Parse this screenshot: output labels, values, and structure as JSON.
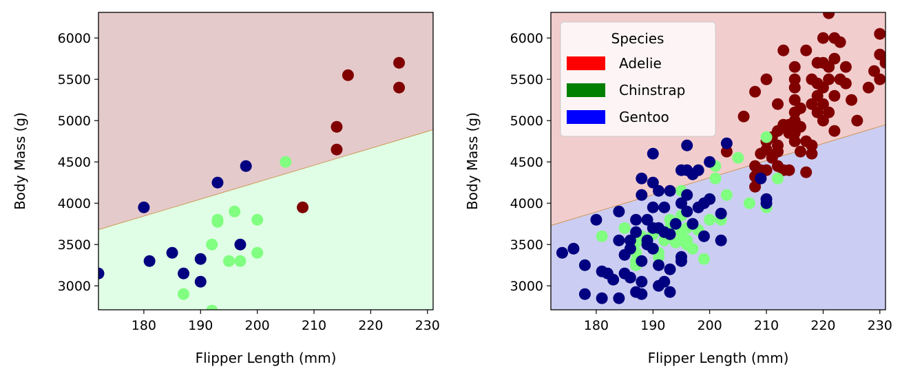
{
  "chart_data": [
    {
      "type": "scatter",
      "xlabel": "Flipper Length (mm)",
      "ylabel": "Body Mass (g)",
      "xlim": [
        172,
        231
      ],
      "ylim": [
        2710,
        6310
      ],
      "xticks": [
        180,
        190,
        200,
        210,
        220,
        230
      ],
      "yticks": [
        3000,
        3500,
        4000,
        4500,
        5000,
        5500,
        6000
      ],
      "decision_boundary": {
        "x": [
          172,
          231
        ],
        "y": [
          3680,
          4890
        ]
      },
      "regions": [
        {
          "side": "above",
          "color": "#e5cacb"
        },
        {
          "side": "below",
          "color": "#e0fde5"
        }
      ],
      "series": [
        {
          "color": "#800000",
          "points": [
            [
              208,
              3950
            ],
            [
              214,
              4650
            ],
            [
              214,
              4925
            ],
            [
              216,
              5550
            ],
            [
              225,
              5700
            ],
            [
              225,
              5400
            ]
          ]
        },
        {
          "color": "#80ff80",
          "points": [
            [
              187,
              2900
            ],
            [
              192,
              2700
            ],
            [
              192,
              3500
            ],
            [
              193,
              3800
            ],
            [
              193,
              3775
            ],
            [
              195,
              3300
            ],
            [
              196,
              3900
            ],
            [
              197,
              3300
            ],
            [
              200,
              3800
            ],
            [
              200,
              3400
            ],
            [
              205,
              4500
            ]
          ]
        },
        {
          "color": "#000080",
          "points": [
            [
              172,
              3150
            ],
            [
              180,
              3950
            ],
            [
              181,
              3300
            ],
            [
              185,
              3400
            ],
            [
              187,
              3150
            ],
            [
              190,
              3325
            ],
            [
              190,
              3050
            ],
            [
              193,
              4250
            ],
            [
              197,
              3500
            ],
            [
              198,
              4450
            ]
          ]
        }
      ]
    },
    {
      "type": "scatter",
      "xlabel": "Flipper Length (mm)",
      "ylabel": "Body Mass (g)",
      "xlim": [
        172,
        231
      ],
      "ylim": [
        2710,
        6310
      ],
      "xticks": [
        180,
        190,
        200,
        210,
        220,
        230
      ],
      "yticks": [
        3000,
        3500,
        4000,
        4500,
        5000,
        5500,
        6000
      ],
      "decision_boundary": {
        "x": [
          172,
          231
        ],
        "y": [
          3730,
          4950
        ]
      },
      "regions": [
        {
          "side": "above",
          "color": "#f2cdcd"
        },
        {
          "side": "below",
          "color": "#cccdf2"
        }
      ],
      "legend": {
        "title": "Species",
        "position": "upper-left",
        "entries": [
          {
            "label": "Adelie",
            "color": "#ff0000"
          },
          {
            "label": "Chinstrap",
            "color": "#008000"
          },
          {
            "label": "Gentoo",
            "color": "#0000ff"
          }
        ]
      },
      "series": [
        {
          "color": "#800000",
          "points": [
            [
              203,
              4625
            ],
            [
              206,
              5050
            ],
            [
              208,
              4200
            ],
            [
              208,
              4325
            ],
            [
              208,
              4450
            ],
            [
              208,
              5350
            ],
            [
              209,
              4300
            ],
            [
              209,
              4400
            ],
            [
              209,
              4600
            ],
            [
              210,
              4400
            ],
            [
              210,
              4650
            ],
            [
              210,
              4750
            ],
            [
              210,
              5500
            ],
            [
              211,
              4550
            ],
            [
              211,
              4800
            ],
            [
              212,
              4450
            ],
            [
              212,
              4625
            ],
            [
              212,
              4700
            ],
            [
              212,
              4875
            ],
            [
              212,
              5200
            ],
            [
              213,
              4400
            ],
            [
              213,
              4950
            ],
            [
              213,
              5850
            ],
            [
              214,
              4400
            ],
            [
              214,
              4850
            ],
            [
              214,
              4950
            ],
            [
              215,
              4750
            ],
            [
              215,
              4850
            ],
            [
              215,
              5000
            ],
            [
              215,
              5100
            ],
            [
              215,
              5250
            ],
            [
              215,
              5400
            ],
            [
              215,
              5500
            ],
            [
              215,
              5650
            ],
            [
              216,
              4625
            ],
            [
              216,
              4925
            ],
            [
              216,
              5150
            ],
            [
              217,
              4375
            ],
            [
              217,
              4750
            ],
            [
              217,
              5850
            ],
            [
              218,
              4600
            ],
            [
              218,
              4700
            ],
            [
              218,
              5200
            ],
            [
              218,
              5500
            ],
            [
              219,
              5100
            ],
            [
              219,
              5300
            ],
            [
              219,
              5450
            ],
            [
              219,
              5700
            ],
            [
              220,
              5000
            ],
            [
              220,
              5200
            ],
            [
              220,
              5400
            ],
            [
              220,
              5700
            ],
            [
              220,
              6000
            ],
            [
              221,
              5100
            ],
            [
              221,
              5500
            ],
            [
              221,
              5650
            ],
            [
              221,
              6300
            ],
            [
              222,
              4875
            ],
            [
              222,
              5300
            ],
            [
              222,
              5750
            ],
            [
              222,
              6000
            ],
            [
              223,
              5500
            ],
            [
              223,
              5950
            ],
            [
              224,
              5650
            ],
            [
              224,
              5450
            ],
            [
              225,
              5250
            ],
            [
              226,
              5000
            ],
            [
              228,
              5400
            ],
            [
              229,
              5600
            ],
            [
              230,
              5500
            ],
            [
              230,
              5800
            ],
            [
              230,
              6050
            ],
            [
              231,
              5700
            ]
          ]
        },
        {
          "color": "#80ff80",
          "points": [
            [
              178,
              3250
            ],
            [
              181,
              3600
            ],
            [
              185,
              3700
            ],
            [
              187,
              3250
            ],
            [
              187,
              3300
            ],
            [
              187,
              3400
            ],
            [
              187,
              3525
            ],
            [
              187,
              3600
            ],
            [
              188,
              3600
            ],
            [
              190,
              3450
            ],
            [
              190,
              3625
            ],
            [
              191,
              3250
            ],
            [
              191,
              3350
            ],
            [
              191,
              3400
            ],
            [
              192,
              3550
            ],
            [
              193,
              3700
            ],
            [
              193,
              3800
            ],
            [
              194,
              3525
            ],
            [
              195,
              3550
            ],
            [
              195,
              3650
            ],
            [
              195,
              3850
            ],
            [
              195,
              4150
            ],
            [
              196,
              3500
            ],
            [
              196,
              3550
            ],
            [
              196,
              3700
            ],
            [
              197,
              3450
            ],
            [
              197,
              3750
            ],
            [
              198,
              3675
            ],
            [
              199,
              3325
            ],
            [
              200,
              3800
            ],
            [
              200,
              4050
            ],
            [
              201,
              4300
            ],
            [
              201,
              4450
            ],
            [
              202,
              3800
            ],
            [
              203,
              4100
            ],
            [
              205,
              4550
            ],
            [
              207,
              4000
            ],
            [
              210,
              3950
            ],
            [
              210,
              4800
            ],
            [
              212,
              4300
            ]
          ]
        },
        {
          "color": "#000080",
          "points": [
            [
              174,
              3400
            ],
            [
              176,
              3450
            ],
            [
              178,
              2900
            ],
            [
              178,
              3250
            ],
            [
              180,
              3800
            ],
            [
              181,
              2850
            ],
            [
              181,
              3175
            ],
            [
              182,
              3150
            ],
            [
              183,
              3075
            ],
            [
              184,
              2850
            ],
            [
              184,
              3550
            ],
            [
              184,
              3900
            ],
            [
              185,
              3150
            ],
            [
              185,
              3375
            ],
            [
              186,
              3100
            ],
            [
              186,
              3450
            ],
            [
              186,
              3550
            ],
            [
              187,
              2925
            ],
            [
              187,
              3650
            ],
            [
              187,
              3800
            ],
            [
              188,
              2900
            ],
            [
              188,
              3050
            ],
            [
              188,
              3300
            ],
            [
              188,
              4100
            ],
            [
              188,
              4300
            ],
            [
              189,
              3500
            ],
            [
              189,
              3550
            ],
            [
              189,
              3800
            ],
            [
              190,
              3450
            ],
            [
              190,
              3700
            ],
            [
              190,
              3950
            ],
            [
              190,
              4250
            ],
            [
              190,
              4600
            ],
            [
              191,
              3000
            ],
            [
              191,
              3250
            ],
            [
              191,
              3700
            ],
            [
              191,
              4150
            ],
            [
              192,
              3050
            ],
            [
              192,
              3650
            ],
            [
              192,
              3950
            ],
            [
              193,
              2925
            ],
            [
              193,
              3200
            ],
            [
              193,
              3625
            ],
            [
              193,
              4150
            ],
            [
              194,
              3750
            ],
            [
              195,
              3300
            ],
            [
              195,
              3350
            ],
            [
              195,
              4000
            ],
            [
              195,
              4400
            ],
            [
              196,
              3900
            ],
            [
              196,
              4100
            ],
            [
              196,
              4400
            ],
            [
              196,
              4700
            ],
            [
              197,
              3750
            ],
            [
              197,
              4350
            ],
            [
              198,
              3950
            ],
            [
              198,
              4400
            ],
            [
              199,
              3600
            ],
            [
              199,
              4000
            ],
            [
              200,
              4050
            ],
            [
              200,
              4500
            ],
            [
              202,
              3875
            ],
            [
              202,
              3550
            ],
            [
              203,
              4725
            ],
            [
              209,
              4300
            ],
            [
              210,
              4000
            ],
            [
              210,
              4050
            ]
          ]
        }
      ]
    }
  ]
}
